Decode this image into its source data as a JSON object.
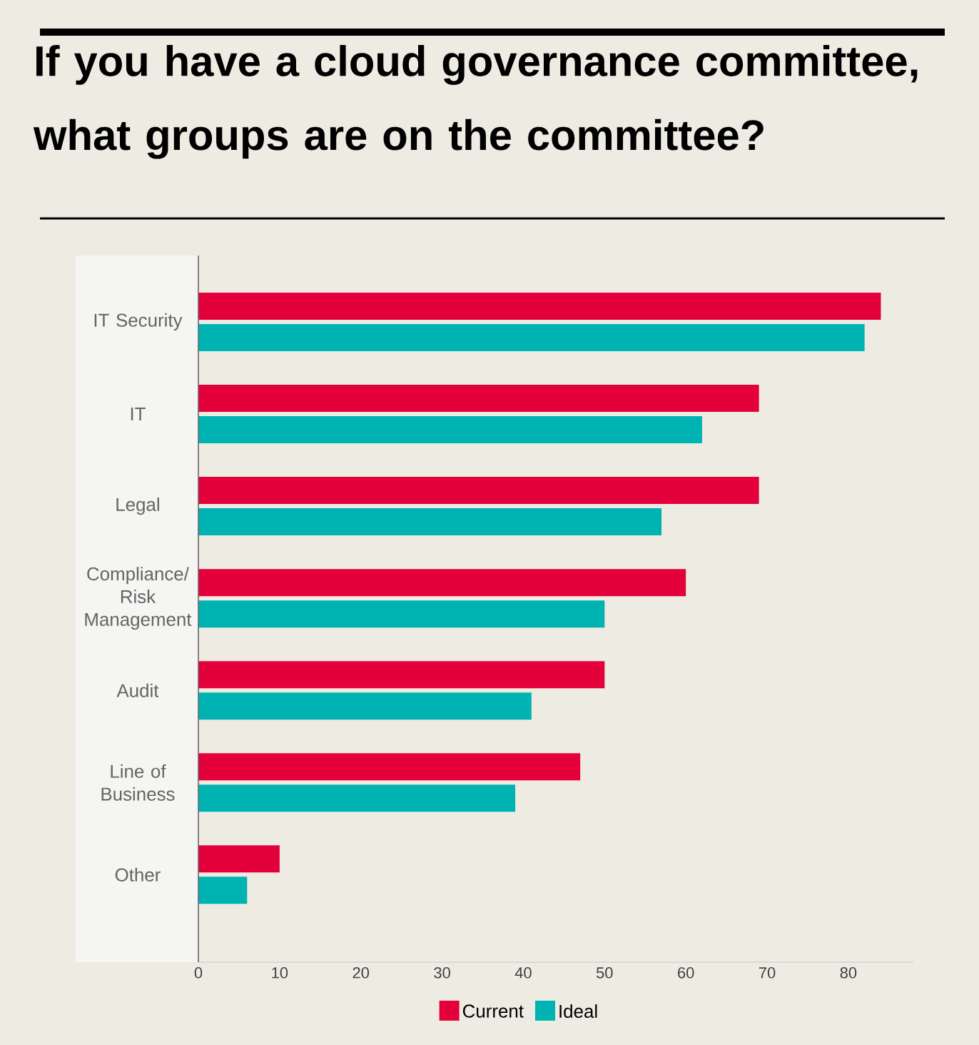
{
  "chart_data": {
    "type": "bar",
    "orientation": "horizontal",
    "title": "If you have a cloud governance committee, what groups are on the committee?",
    "categories": [
      "IT Security",
      "IT",
      "Legal",
      "Compliance/ Risk Management",
      "Audit",
      "Line of Business",
      "Other"
    ],
    "series": [
      {
        "name": "Current",
        "color": "#e4003a",
        "values": [
          84,
          69,
          69,
          60,
          50,
          47,
          10
        ]
      },
      {
        "name": "Ideal",
        "color": "#00b3b3",
        "values": [
          82,
          62,
          57,
          50,
          41,
          39,
          6
        ]
      }
    ],
    "xlim": [
      0,
      88
    ],
    "xticks": [
      0,
      10,
      20,
      30,
      40,
      50,
      60,
      70,
      80
    ],
    "legend": "bottom"
  }
}
